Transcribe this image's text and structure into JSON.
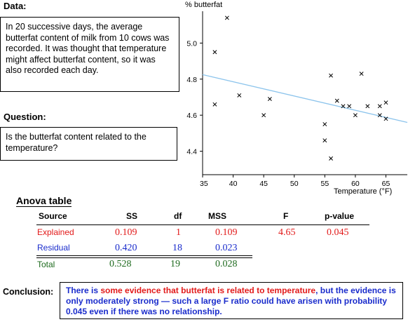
{
  "data_section": {
    "heading": "Data:",
    "text": "In 20 successive days, the average butterfat content of milk from 10 cows was recorded. It was thought that temperature might affect butterfat content, so it was also recorded each day."
  },
  "question_section": {
    "heading": "Question:",
    "text": "Is the butterfat content related to the temperature?"
  },
  "chart_data": {
    "type": "scatter",
    "ylabel": "% butterfat",
    "xlabel": "Temperature (°F)",
    "xlim": [
      35,
      68.5
    ],
    "ylim": [
      4.27,
      5.2
    ],
    "xticks": [
      35,
      40,
      45,
      50,
      55,
      60,
      65
    ],
    "yticks": [
      4.4,
      4.6,
      4.8,
      5.0
    ],
    "points": [
      {
        "x": 37,
        "y": 4.95
      },
      {
        "x": 37,
        "y": 4.66
      },
      {
        "x": 39,
        "y": 5.14
      },
      {
        "x": 41,
        "y": 4.71
      },
      {
        "x": 45,
        "y": 4.6
      },
      {
        "x": 46,
        "y": 4.69
      },
      {
        "x": 55,
        "y": 4.55
      },
      {
        "x": 55,
        "y": 4.46
      },
      {
        "x": 56,
        "y": 4.36
      },
      {
        "x": 56,
        "y": 4.82
      },
      {
        "x": 57,
        "y": 4.68
      },
      {
        "x": 58,
        "y": 4.65
      },
      {
        "x": 59,
        "y": 4.65
      },
      {
        "x": 60,
        "y": 4.6
      },
      {
        "x": 61,
        "y": 4.83
      },
      {
        "x": 62,
        "y": 4.65
      },
      {
        "x": 64,
        "y": 4.65
      },
      {
        "x": 64,
        "y": 4.6
      },
      {
        "x": 65,
        "y": 4.58
      },
      {
        "x": 65,
        "y": 4.67
      }
    ],
    "fit_line": {
      "x": [
        35,
        68.5
      ],
      "y": [
        4.825,
        4.56
      ]
    },
    "marker_color": "#000000",
    "line_color": "#8cc4ec"
  },
  "anova": {
    "title": "Anova table",
    "headers": [
      "Source",
      "SS",
      "df",
      "MSS",
      "F",
      "p-value"
    ],
    "explained": {
      "label": "Explained",
      "ss": "0.109",
      "df": "1",
      "mss": "0.109",
      "f": "4.65",
      "p": "0.045"
    },
    "residual": {
      "label": "Residual",
      "ss": "0.420",
      "df": "18",
      "mss": "0.023"
    },
    "total": {
      "label": "Total",
      "ss": "0.528",
      "df": "19",
      "mss": "0.028"
    }
  },
  "conclusion": {
    "heading": "Conclusion:",
    "part1": "There is ",
    "highlight": "some evidence that butterfat is related to temperature",
    "part2": ", but the evidence is only moderately strong — such a large F ratio could have arisen with probability 0.045 even if there was no relationship."
  }
}
